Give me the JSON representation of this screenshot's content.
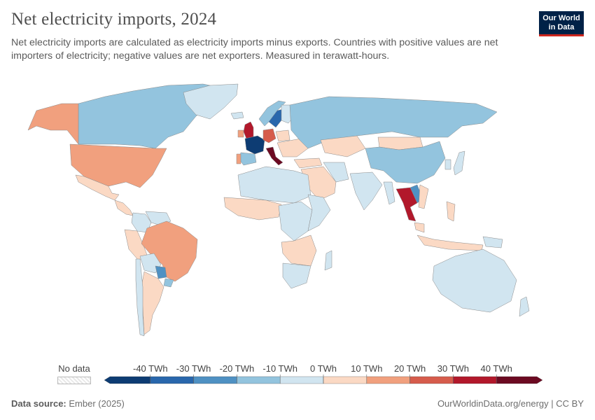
{
  "header": {
    "title": "Net electricity imports, 2024",
    "subtitle": "Net electricity imports are calculated as electricity imports minus exports. Countries with positive values are net importers of electricity; negative values are net exporters. Measured in terawatt-hours.",
    "logo_line1": "Our World",
    "logo_line2": "in Data",
    "logo_color": "#002147",
    "logo_accent": "#ce261e"
  },
  "legend": {
    "no_data_label": "No data",
    "bins": [
      "-40 TWh",
      "-30 TWh",
      "-20 TWh",
      "-10 TWh",
      "0 TWh",
      "10 TWh",
      "20 TWh",
      "30 TWh",
      "40 TWh"
    ],
    "colors": [
      "#0d3c73",
      "#2967ac",
      "#4f91c3",
      "#93c4de",
      "#d1e5f0",
      "#fbd9c4",
      "#f1a07e",
      "#d65c4c",
      "#b2182b",
      "#6c0a22"
    ]
  },
  "footer": {
    "source_label": "Data source:",
    "source_value": "Ember (2025)",
    "url": "OurWorldinData.org/energy | CC BY"
  },
  "chart_data": {
    "type": "choropleth",
    "title": "Net electricity imports, 2024",
    "unit": "TWh",
    "regions": [
      {
        "name": "Canada",
        "bin": "-20 to -10"
      },
      {
        "name": "Alaska",
        "bin": "10 to 20"
      },
      {
        "name": "United States",
        "bin": "10 to 20"
      },
      {
        "name": "Mexico",
        "bin": "0 to 10"
      },
      {
        "name": "Central America",
        "bin": "0 to 10"
      },
      {
        "name": "Colombia",
        "bin": "-10 to 0"
      },
      {
        "name": "Venezuela",
        "bin": "-10 to 0"
      },
      {
        "name": "Peru",
        "bin": "0 to 10"
      },
      {
        "name": "Brazil",
        "bin": "10 to 20"
      },
      {
        "name": "Bolivia",
        "bin": "-10 to 0"
      },
      {
        "name": "Paraguay",
        "bin": "-30 to -20"
      },
      {
        "name": "Uruguay",
        "bin": "-20 to -10"
      },
      {
        "name": "Argentina",
        "bin": "0 to 10"
      },
      {
        "name": "Chile",
        "bin": "-10 to 0"
      },
      {
        "name": "Greenland",
        "bin": "-10 to 0"
      },
      {
        "name": "Iceland",
        "bin": "-10 to 0"
      },
      {
        "name": "United Kingdom",
        "bin": "30 to 40"
      },
      {
        "name": "Ireland",
        "bin": "10 to 20"
      },
      {
        "name": "France",
        "bin": "below -40"
      },
      {
        "name": "Spain",
        "bin": "-20 to -10"
      },
      {
        "name": "Portugal",
        "bin": "10 to 20"
      },
      {
        "name": "Italy",
        "bin": "above 40"
      },
      {
        "name": "Germany",
        "bin": "20 to 30"
      },
      {
        "name": "Norway",
        "bin": "-20 to -10"
      },
      {
        "name": "Sweden",
        "bin": "-40 to -30"
      },
      {
        "name": "Finland",
        "bin": "-10 to 0"
      },
      {
        "name": "Poland",
        "bin": "0 to 10"
      },
      {
        "name": "Eastern Europe",
        "bin": "0 to 10"
      },
      {
        "name": "Russia",
        "bin": "-20 to -10"
      },
      {
        "name": "Turkey",
        "bin": "0 to 10"
      },
      {
        "name": "Kazakhstan",
        "bin": "0 to 10"
      },
      {
        "name": "Mongolia",
        "bin": "0 to 10"
      },
      {
        "name": "China",
        "bin": "-20 to -10"
      },
      {
        "name": "Korea",
        "bin": "-10 to 0"
      },
      {
        "name": "Japan",
        "bin": "-10 to 0"
      },
      {
        "name": "Middle East",
        "bin": "0 to 10"
      },
      {
        "name": "Iran",
        "bin": "-10 to 0"
      },
      {
        "name": "India",
        "bin": "-10 to 0"
      },
      {
        "name": "Myanmar",
        "bin": "-10 to 0"
      },
      {
        "name": "Laos",
        "bin": "-30 to -20"
      },
      {
        "name": "Thailand",
        "bin": "30 to 40"
      },
      {
        "name": "Vietnam",
        "bin": "0 to 10"
      },
      {
        "name": "Malaysia",
        "bin": "0 to 10"
      },
      {
        "name": "Indonesia",
        "bin": "0 to 10"
      },
      {
        "name": "Philippines",
        "bin": "0 to 10"
      },
      {
        "name": "Papua New Guinea",
        "bin": "-10 to 0"
      },
      {
        "name": "Australia",
        "bin": "-10 to 0"
      },
      {
        "name": "New Zealand",
        "bin": "-10 to 0"
      },
      {
        "name": "North Africa",
        "bin": "-10 to 0"
      },
      {
        "name": "West Africa",
        "bin": "0 to 10"
      },
      {
        "name": "Central Africa",
        "bin": "-10 to 0"
      },
      {
        "name": "East Africa",
        "bin": "-10 to 0"
      },
      {
        "name": "Southern Africa",
        "bin": "0 to 10"
      },
      {
        "name": "South Africa",
        "bin": "-10 to 0"
      },
      {
        "name": "Madagascar",
        "bin": "-10 to 0"
      }
    ]
  }
}
